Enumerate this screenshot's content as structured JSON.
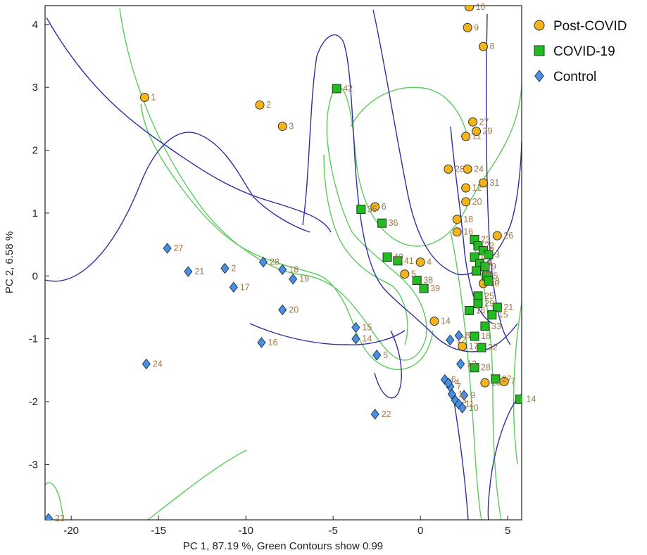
{
  "chart_data": {
    "type": "scatter",
    "title": "",
    "xlabel": "PC 1,  87.19 %, Green Contours show 0.99",
    "ylabel": "PC 2,   6.58 %",
    "xlim": [
      -21.5,
      5.8
    ],
    "ylim": [
      -3.88,
      4.3
    ],
    "xticks": [
      -20,
      -15,
      -10,
      -5,
      0,
      5
    ],
    "yticks": [
      -3,
      -2,
      -1,
      0,
      1,
      2,
      3,
      4
    ],
    "legend_position": "top-right",
    "series": [
      {
        "name": "Post-COVID",
        "marker": "circle",
        "color": "#f4b41a",
        "points": [
          {
            "x": -15.8,
            "y": 2.84,
            "label": "1"
          },
          {
            "x": -9.2,
            "y": 2.72,
            "label": "2"
          },
          {
            "x": -7.9,
            "y": 2.38,
            "label": "3"
          },
          {
            "x": 2.8,
            "y": 4.28,
            "label": "10"
          },
          {
            "x": 2.7,
            "y": 3.95,
            "label": "9"
          },
          {
            "x": 3.6,
            "y": 3.65,
            "label": "8"
          },
          {
            "x": 3.0,
            "y": 2.45,
            "label": "27"
          },
          {
            "x": 3.2,
            "y": 2.3,
            "label": "29"
          },
          {
            "x": 2.6,
            "y": 2.22,
            "label": "11"
          },
          {
            "x": 1.6,
            "y": 1.7,
            "label": "28"
          },
          {
            "x": 2.7,
            "y": 1.7,
            "label": "24"
          },
          {
            "x": 3.6,
            "y": 1.48,
            "label": "31"
          },
          {
            "x": 2.6,
            "y": 1.4,
            "label": "12"
          },
          {
            "x": 2.6,
            "y": 1.18,
            "label": "20"
          },
          {
            "x": -2.6,
            "y": 1.1,
            "label": "6"
          },
          {
            "x": 2.1,
            "y": 0.9,
            "label": "18"
          },
          {
            "x": 2.1,
            "y": 0.7,
            "label": "16"
          },
          {
            "x": 4.4,
            "y": 0.64,
            "label": "26"
          },
          {
            "x": 0.0,
            "y": 0.22,
            "label": "4"
          },
          {
            "x": -0.9,
            "y": 0.03,
            "label": "5"
          },
          {
            "x": 3.6,
            "y": -0.12,
            "label": "30"
          },
          {
            "x": 0.8,
            "y": -0.72,
            "label": "14"
          },
          {
            "x": 2.4,
            "y": -1.12,
            "label": "17"
          },
          {
            "x": 3.7,
            "y": -1.7,
            "label": "13"
          },
          {
            "x": 4.8,
            "y": -1.68,
            "label": "7"
          }
        ]
      },
      {
        "name": "COVID-19",
        "marker": "square",
        "color": "#22bb22",
        "points": [
          {
            "x": -4.8,
            "y": 2.98,
            "label": "42"
          },
          {
            "x": -3.4,
            "y": 1.06,
            "label": "35"
          },
          {
            "x": -2.2,
            "y": 0.84,
            "label": "36"
          },
          {
            "x": -1.9,
            "y": 0.3,
            "label": "40"
          },
          {
            "x": -1.3,
            "y": 0.24,
            "label": "41"
          },
          {
            "x": -0.2,
            "y": -0.07,
            "label": "38"
          },
          {
            "x": 0.2,
            "y": -0.2,
            "label": "39"
          },
          {
            "x": 3.1,
            "y": 0.58,
            "label": "23"
          },
          {
            "x": 3.3,
            "y": 0.48,
            "label": "22"
          },
          {
            "x": 3.6,
            "y": 0.4,
            "label": "2"
          },
          {
            "x": 3.9,
            "y": 0.34,
            "label": "3"
          },
          {
            "x": 3.1,
            "y": 0.3,
            "label": "4"
          },
          {
            "x": 3.4,
            "y": 0.2,
            "label": "6"
          },
          {
            "x": 3.7,
            "y": 0.15,
            "label": "9"
          },
          {
            "x": 3.2,
            "y": 0.08,
            "label": "11"
          },
          {
            "x": 3.8,
            "y": 0.0,
            "label": "5"
          },
          {
            "x": 3.9,
            "y": -0.08,
            "label": "8"
          },
          {
            "x": 3.3,
            "y": -0.32,
            "label": "25"
          },
          {
            "x": 3.3,
            "y": -0.44,
            "label": "29"
          },
          {
            "x": 4.4,
            "y": -0.5,
            "label": "21"
          },
          {
            "x": 2.8,
            "y": -0.55,
            "label": "16"
          },
          {
            "x": 4.1,
            "y": -0.62,
            "label": "15"
          },
          {
            "x": 3.7,
            "y": -0.8,
            "label": "33"
          },
          {
            "x": 3.1,
            "y": -0.96,
            "label": "18"
          },
          {
            "x": 3.5,
            "y": -1.14,
            "label": "32"
          },
          {
            "x": 3.1,
            "y": -1.46,
            "label": "28"
          },
          {
            "x": 4.3,
            "y": -1.64,
            "label": "27"
          },
          {
            "x": 5.7,
            "y": -1.96,
            "label": "14"
          }
        ]
      },
      {
        "name": "Control",
        "marker": "diamond",
        "color": "#4a90e2",
        "points": [
          {
            "x": -14.5,
            "y": 0.44,
            "label": "27"
          },
          {
            "x": -13.3,
            "y": 0.07,
            "label": "21"
          },
          {
            "x": -11.2,
            "y": 0.12,
            "label": "2"
          },
          {
            "x": -9.0,
            "y": 0.22,
            "label": "28"
          },
          {
            "x": -7.9,
            "y": 0.1,
            "label": "18"
          },
          {
            "x": -7.3,
            "y": -0.05,
            "label": "19"
          },
          {
            "x": -10.7,
            "y": -0.18,
            "label": "17"
          },
          {
            "x": -7.9,
            "y": -0.54,
            "label": "20"
          },
          {
            "x": -9.1,
            "y": -1.06,
            "label": "16"
          },
          {
            "x": -15.7,
            "y": -1.4,
            "label": "24"
          },
          {
            "x": -3.7,
            "y": -0.82,
            "label": "15"
          },
          {
            "x": -3.7,
            "y": -1.0,
            "label": "14"
          },
          {
            "x": -2.5,
            "y": -1.26,
            "label": "5"
          },
          {
            "x": -2.6,
            "y": -2.2,
            "label": "22"
          },
          {
            "x": -21.3,
            "y": -3.86,
            "label": "23"
          },
          {
            "x": 1.7,
            "y": -1.02,
            "label": "12"
          },
          {
            "x": 2.2,
            "y": -0.95,
            "label": "8"
          },
          {
            "x": 2.3,
            "y": -1.4,
            "label": "13"
          },
          {
            "x": 1.4,
            "y": -1.65,
            "label": "6"
          },
          {
            "x": 1.7,
            "y": -1.76,
            "label": "7"
          },
          {
            "x": 1.8,
            "y": -1.88,
            "label": "1"
          },
          {
            "x": 2.0,
            "y": -1.98,
            "label": "3"
          },
          {
            "x": 2.2,
            "y": -2.04,
            "label": "11"
          },
          {
            "x": 2.4,
            "y": -2.1,
            "label": "10"
          },
          {
            "x": 2.5,
            "y": -1.9,
            "label": "9"
          },
          {
            "x": 1.6,
            "y": -1.7,
            "label": "4"
          }
        ]
      }
    ]
  },
  "colors": {
    "green_contour": "#5ccb5c",
    "blue_contour": "#2f2f9f"
  }
}
